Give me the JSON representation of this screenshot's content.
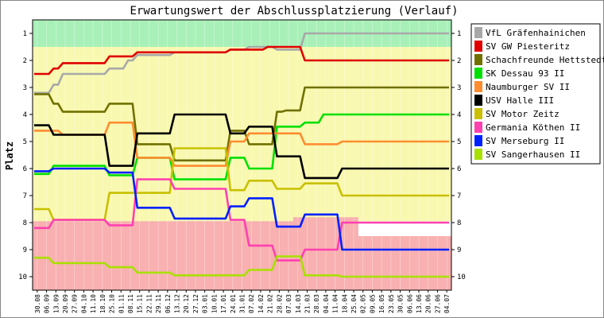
{
  "chart_data": {
    "type": "line",
    "title": "Erwartungswert der Abschlussplatzierung (Verlauf)",
    "ylabel": "Platz",
    "xlabel": "",
    "ylim": [
      1,
      10
    ],
    "y_inverted": true,
    "yticks": [
      1,
      2,
      3,
      4,
      5,
      6,
      7,
      8,
      9,
      10
    ],
    "legend_position": "right",
    "background_bands": [
      {
        "zone": "promotion",
        "color": "#a8f0b8"
      },
      {
        "zone": "middle",
        "color": "#f8f8b0"
      },
      {
        "zone": "relegation",
        "color": "#f8b0b0"
      }
    ],
    "x": [
      "30.08",
      "06.09",
      "13.09",
      "20.09",
      "27.09",
      "04.10",
      "11.10",
      "18.10",
      "25.10",
      "01.11",
      "08.11",
      "15.11",
      "22.11",
      "29.11",
      "06.12",
      "13.12",
      "20.12",
      "27.12",
      "03.01",
      "10.01",
      "17.01",
      "24.01",
      "31.01",
      "07.02",
      "14.02",
      "21.02",
      "28.02",
      "07.03",
      "14.03",
      "21.03",
      "28.03",
      "04.04",
      "11.04",
      "18.04",
      "25.04",
      "02.05",
      "09.05",
      "16.05",
      "23.05",
      "30.05",
      "06.06",
      "13.06",
      "20.06",
      "27.06",
      "04.07"
    ],
    "series": [
      {
        "name": "VfL Gräfenhainichen",
        "color": "#a8a8a8",
        "values": [
          3.2,
          3.2,
          2.9,
          2.5,
          2.5,
          2.5,
          2.5,
          2.5,
          2.3,
          2.3,
          2.0,
          1.8,
          1.8,
          1.8,
          1.8,
          1.7,
          1.7,
          1.7,
          1.7,
          1.7,
          1.7,
          1.6,
          1.6,
          1.5,
          1.5,
          1.5,
          1.6,
          1.6,
          1.6,
          1.0,
          1.0,
          1.0,
          1.0,
          1.0,
          1.0,
          1.0,
          1.0,
          1.0,
          1.0,
          1.0,
          1.0,
          1.0,
          1.0,
          1.0,
          1.0
        ]
      },
      {
        "name": "SV GW Piesteritz",
        "color": "#e00000",
        "values": [
          2.5,
          2.5,
          2.3,
          2.1,
          2.1,
          2.1,
          2.1,
          2.1,
          1.85,
          1.85,
          1.85,
          1.7,
          1.7,
          1.7,
          1.7,
          1.7,
          1.7,
          1.7,
          1.7,
          1.7,
          1.7,
          1.6,
          1.6,
          1.6,
          1.6,
          1.5,
          1.5,
          1.5,
          1.5,
          2.0,
          2.0,
          2.0,
          2.0,
          2.0,
          2.0,
          2.0,
          2.0,
          2.0,
          2.0,
          2.0,
          2.0,
          2.0,
          2.0,
          2.0,
          2.0
        ]
      },
      {
        "name": "Schachfreunde Hettstedt",
        "color": "#707000",
        "values": [
          3.25,
          3.25,
          3.6,
          3.9,
          3.9,
          3.9,
          3.9,
          3.9,
          3.6,
          3.6,
          3.6,
          5.1,
          5.1,
          5.1,
          5.1,
          5.7,
          5.7,
          5.7,
          5.7,
          5.7,
          5.7,
          4.6,
          4.6,
          5.1,
          5.1,
          5.1,
          3.9,
          3.85,
          3.85,
          3.0,
          3.0,
          3.0,
          3.0,
          3.0,
          3.0,
          3.0,
          3.0,
          3.0,
          3.0,
          3.0,
          3.0,
          3.0,
          3.0,
          3.0,
          3.0
        ]
      },
      {
        "name": "SK Dessau 93 II",
        "color": "#00e000",
        "values": [
          6.2,
          6.2,
          5.9,
          5.9,
          5.9,
          5.9,
          5.9,
          5.9,
          6.25,
          6.25,
          6.25,
          5.6,
          5.6,
          5.6,
          5.6,
          6.4,
          6.4,
          6.4,
          6.4,
          6.4,
          6.4,
          5.6,
          5.6,
          6.0,
          6.0,
          6.0,
          4.45,
          4.45,
          4.45,
          4.3,
          4.3,
          4.0,
          4.0,
          4.0,
          4.0,
          4.0,
          4.0,
          4.0,
          4.0,
          4.0,
          4.0,
          4.0,
          4.0,
          4.0,
          4.0
        ]
      },
      {
        "name": "Naumburger SV II",
        "color": "#ff8c30",
        "values": [
          4.6,
          4.6,
          4.6,
          4.75,
          4.75,
          4.75,
          4.75,
          4.75,
          4.3,
          4.3,
          4.3,
          5.6,
          5.6,
          5.6,
          5.6,
          5.9,
          5.9,
          5.9,
          5.9,
          5.9,
          5.9,
          5.0,
          5.0,
          4.7,
          4.7,
          4.7,
          4.7,
          4.7,
          4.7,
          5.1,
          5.1,
          5.1,
          5.1,
          5.0,
          5.0,
          5.0,
          5.0,
          5.0,
          5.0,
          5.0,
          5.0,
          5.0,
          5.0,
          5.0,
          5.0
        ]
      },
      {
        "name": "USV Halle III",
        "color": "#000000",
        "values": [
          4.4,
          4.4,
          4.75,
          4.75,
          4.75,
          4.75,
          4.75,
          4.75,
          5.9,
          5.9,
          5.9,
          4.7,
          4.7,
          4.7,
          4.7,
          4.0,
          4.0,
          4.0,
          4.0,
          4.0,
          4.0,
          4.7,
          4.7,
          4.45,
          4.45,
          4.45,
          5.55,
          5.55,
          5.55,
          6.35,
          6.35,
          6.35,
          6.35,
          6.0,
          6.0,
          6.0,
          6.0,
          6.0,
          6.0,
          6.0,
          6.0,
          6.0,
          6.0,
          6.0,
          6.0
        ]
      },
      {
        "name": "SV Motor Zeitz",
        "color": "#c8c000",
        "values": [
          7.5,
          7.5,
          7.9,
          7.9,
          7.9,
          7.9,
          7.9,
          7.9,
          6.9,
          6.9,
          6.9,
          6.9,
          6.9,
          6.9,
          6.9,
          5.25,
          5.25,
          5.25,
          5.25,
          5.25,
          5.25,
          6.8,
          6.8,
          6.45,
          6.45,
          6.45,
          6.75,
          6.75,
          6.75,
          6.55,
          6.55,
          6.55,
          6.55,
          7.0,
          7.0,
          7.0,
          7.0,
          7.0,
          7.0,
          7.0,
          7.0,
          7.0,
          7.0,
          7.0,
          7.0
        ]
      },
      {
        "name": "Germania Köthen II",
        "color": "#ff40b0",
        "values": [
          8.2,
          8.2,
          7.9,
          7.9,
          7.9,
          7.9,
          7.9,
          7.9,
          8.1,
          8.1,
          8.1,
          6.4,
          6.4,
          6.4,
          6.4,
          6.75,
          6.75,
          6.75,
          6.75,
          6.75,
          6.75,
          7.9,
          7.9,
          8.85,
          8.85,
          8.85,
          9.4,
          9.4,
          9.4,
          9.0,
          9.0,
          9.0,
          9.0,
          8.0,
          8.0,
          8.0,
          8.0,
          8.0,
          8.0,
          8.0,
          8.0,
          8.0,
          8.0,
          8.0,
          8.0
        ]
      },
      {
        "name": "SV Merseburg II",
        "color": "#0020ff",
        "values": [
          6.1,
          6.1,
          6.0,
          6.0,
          6.0,
          6.0,
          6.0,
          6.0,
          6.15,
          6.15,
          6.15,
          7.45,
          7.45,
          7.45,
          7.45,
          7.85,
          7.85,
          7.85,
          7.85,
          7.85,
          7.85,
          7.4,
          7.4,
          7.1,
          7.1,
          7.1,
          8.15,
          8.15,
          8.15,
          7.7,
          7.7,
          7.7,
          7.7,
          9.0,
          9.0,
          9.0,
          9.0,
          9.0,
          9.0,
          9.0,
          9.0,
          9.0,
          9.0,
          9.0,
          9.0
        ]
      },
      {
        "name": "SV Sangerhausen II",
        "color": "#a8e000",
        "values": [
          9.3,
          9.3,
          9.5,
          9.5,
          9.5,
          9.5,
          9.5,
          9.5,
          9.65,
          9.65,
          9.65,
          9.85,
          9.85,
          9.85,
          9.85,
          9.95,
          9.95,
          9.95,
          9.95,
          9.95,
          9.95,
          9.95,
          9.95,
          9.75,
          9.75,
          9.75,
          9.25,
          9.25,
          9.25,
          9.95,
          9.95,
          9.95,
          9.95,
          10.0,
          10.0,
          10.0,
          10.0,
          10.0,
          10.0,
          10.0,
          10.0,
          10.0,
          10.0,
          10.0,
          10.0
        ]
      }
    ]
  }
}
